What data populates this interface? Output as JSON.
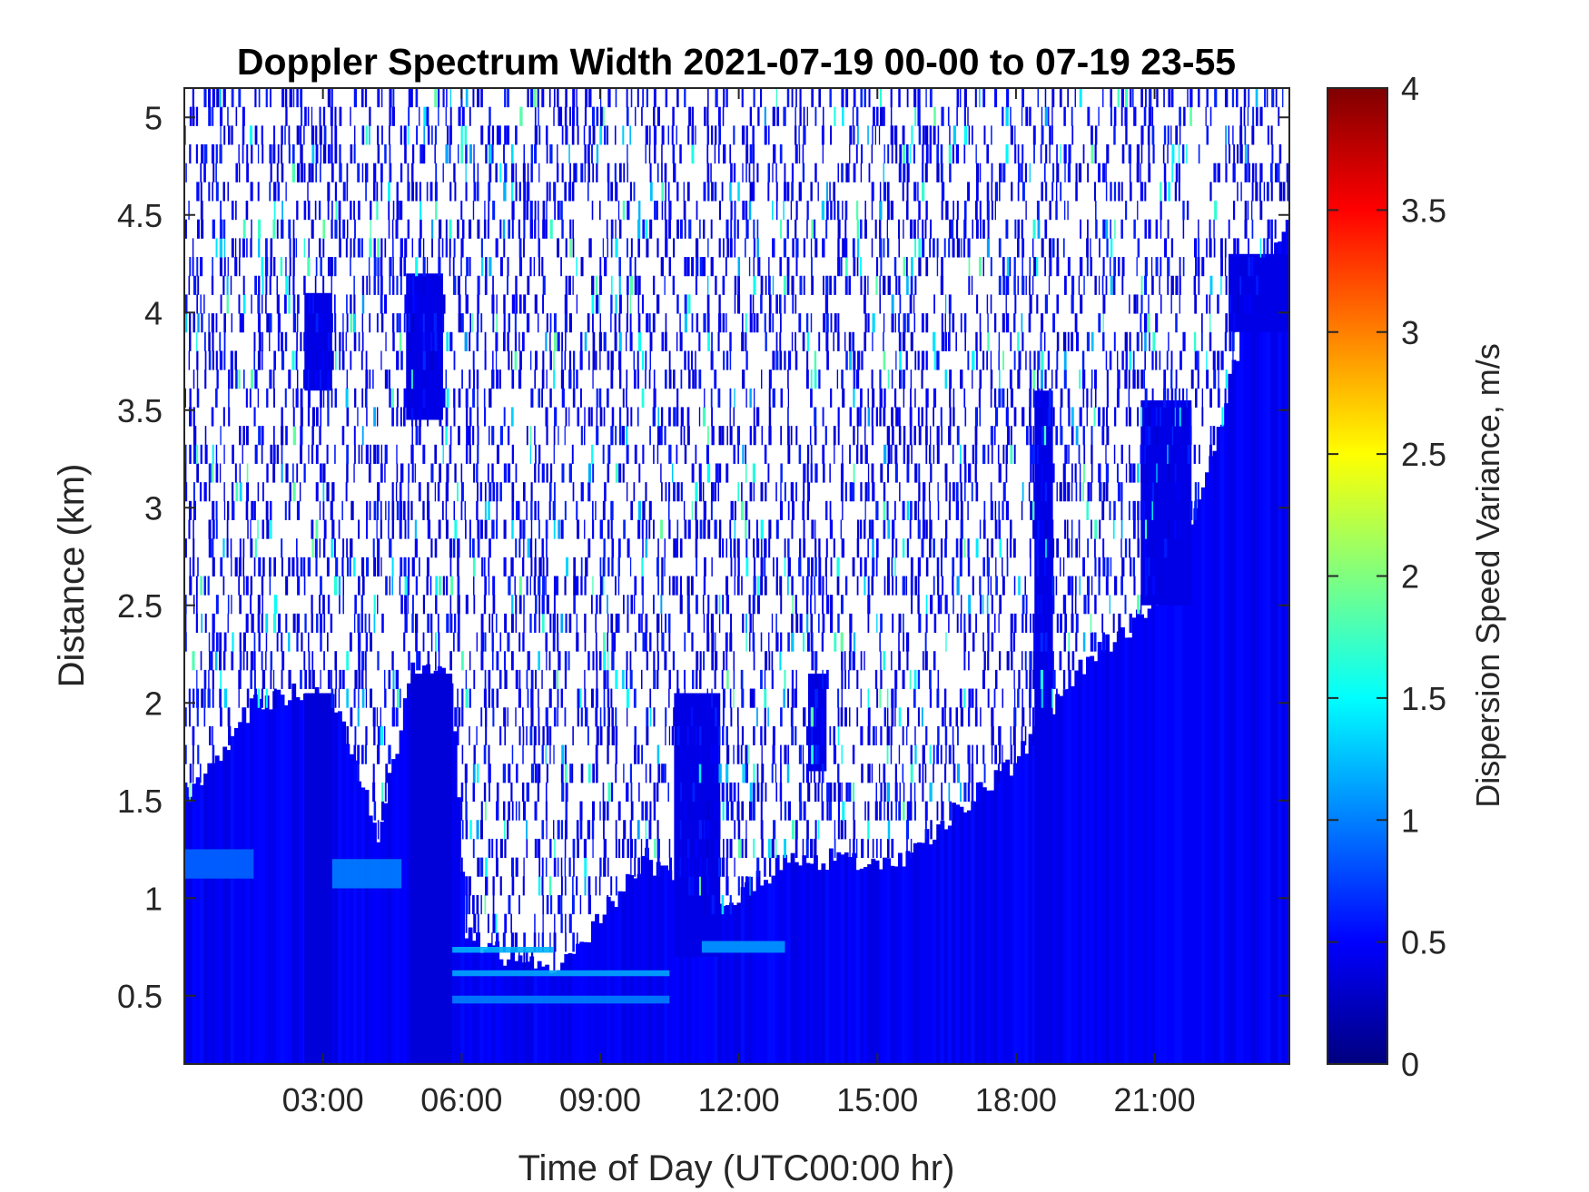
{
  "chart_data": {
    "type": "heatmap",
    "title": "Doppler Spectrum Width 2021-07-19 00-00 to 07-19 23-55",
    "xlabel": "Time of Day (UTC00:00 hr)",
    "ylabel": "Distance (km)",
    "x_units": "hours",
    "xlim": [
      0,
      23.917
    ],
    "ylim": [
      0.15,
      5.15
    ],
    "x_ticks": [
      3,
      6,
      9,
      12,
      15,
      18,
      21
    ],
    "x_tick_labels": [
      "03:00",
      "06:00",
      "09:00",
      "12:00",
      "15:00",
      "18:00",
      "21:00"
    ],
    "y_ticks": [
      0.5,
      1,
      1.5,
      2,
      2.5,
      3,
      3.5,
      4,
      4.5,
      5
    ],
    "y_tick_labels": [
      "0.5",
      "1",
      "1.5",
      "2",
      "2.5",
      "3",
      "3.5",
      "4",
      "4.5",
      "5"
    ],
    "colormap": "jet",
    "colorbar": {
      "label": "Dispersion Speed Variance, m/s",
      "range": [
        0,
        4
      ],
      "ticks": [
        0,
        0.5,
        1,
        1.5,
        2,
        2.5,
        3,
        3.5,
        4
      ],
      "tick_labels": [
        "0",
        "0.5",
        "1",
        "1.5",
        "2",
        "2.5",
        "3",
        "3.5",
        "4"
      ]
    },
    "typical_value_dense_region": 0.45,
    "typical_value_near_surface_streak": 1.2,
    "data_top_km_by_hour": [
      {
        "hour": 0.0,
        "top_km": 1.5
      },
      {
        "hour": 1.5,
        "top_km": 2.0
      },
      {
        "hour": 2.6,
        "top_km": 2.05
      },
      {
        "hour": 3.3,
        "top_km": 2.0
      },
      {
        "hour": 4.2,
        "top_km": 1.3
      },
      {
        "hour": 4.9,
        "top_km": 2.15
      },
      {
        "hour": 5.8,
        "top_km": 2.15
      },
      {
        "hour": 6.1,
        "top_km": 0.8
      },
      {
        "hour": 8.0,
        "top_km": 0.6
      },
      {
        "hour": 10.0,
        "top_km": 1.2
      },
      {
        "hour": 11.5,
        "top_km": 0.9
      },
      {
        "hour": 13.0,
        "top_km": 1.2
      },
      {
        "hour": 15.5,
        "top_km": 1.2
      },
      {
        "hour": 17.0,
        "top_km": 1.5
      },
      {
        "hour": 18.0,
        "top_km": 1.7
      },
      {
        "hour": 19.5,
        "top_km": 2.2
      },
      {
        "hour": 21.0,
        "top_km": 2.5
      },
      {
        "hour": 22.0,
        "top_km": 3.0
      },
      {
        "hour": 23.0,
        "top_km": 4.0
      },
      {
        "hour": 23.9,
        "top_km": 4.5
      }
    ],
    "patches": [
      {
        "x": [
          2.6,
          3.2
        ],
        "y": [
          0.15,
          2.05
        ],
        "value": 0.35
      },
      {
        "x": [
          4.9,
          5.8
        ],
        "y": [
          0.15,
          2.15
        ],
        "value": 0.35
      },
      {
        "x": [
          2.6,
          3.2
        ],
        "y": [
          3.6,
          4.1
        ],
        "value": 0.4
      },
      {
        "x": [
          4.8,
          5.6
        ],
        "y": [
          3.45,
          4.2
        ],
        "value": 0.4
      },
      {
        "x": [
          10.6,
          11.6
        ],
        "y": [
          0.7,
          2.05
        ],
        "value": 0.4
      },
      {
        "x": [
          13.5,
          13.9
        ],
        "y": [
          1.65,
          2.15
        ],
        "value": 0.4
      },
      {
        "x": [
          18.4,
          18.8
        ],
        "y": [
          0.15,
          3.6
        ],
        "value": 0.4
      },
      {
        "x": [
          20.7,
          21.8
        ],
        "y": [
          2.5,
          3.55
        ],
        "value": 0.4
      },
      {
        "x": [
          22.6,
          23.917
        ],
        "y": [
          3.9,
          4.3
        ],
        "value": 0.4
      }
    ],
    "streaks": [
      {
        "x": [
          5.8,
          8.0
        ],
        "y": [
          0.72,
          0.75
        ],
        "value": 1.2
      },
      {
        "x": [
          5.8,
          10.5
        ],
        "y": [
          0.6,
          0.63
        ],
        "value": 1.15
      },
      {
        "x": [
          5.8,
          10.5
        ],
        "y": [
          0.46,
          0.5
        ],
        "value": 1.0
      },
      {
        "x": [
          11.2,
          13.0
        ],
        "y": [
          0.72,
          0.78
        ],
        "value": 1.1
      },
      {
        "x": [
          3.2,
          4.7
        ],
        "y": [
          1.05,
          1.2
        ],
        "value": 1.0
      },
      {
        "x": [
          0.0,
          1.5
        ],
        "y": [
          1.1,
          1.25
        ],
        "value": 0.9
      }
    ]
  }
}
